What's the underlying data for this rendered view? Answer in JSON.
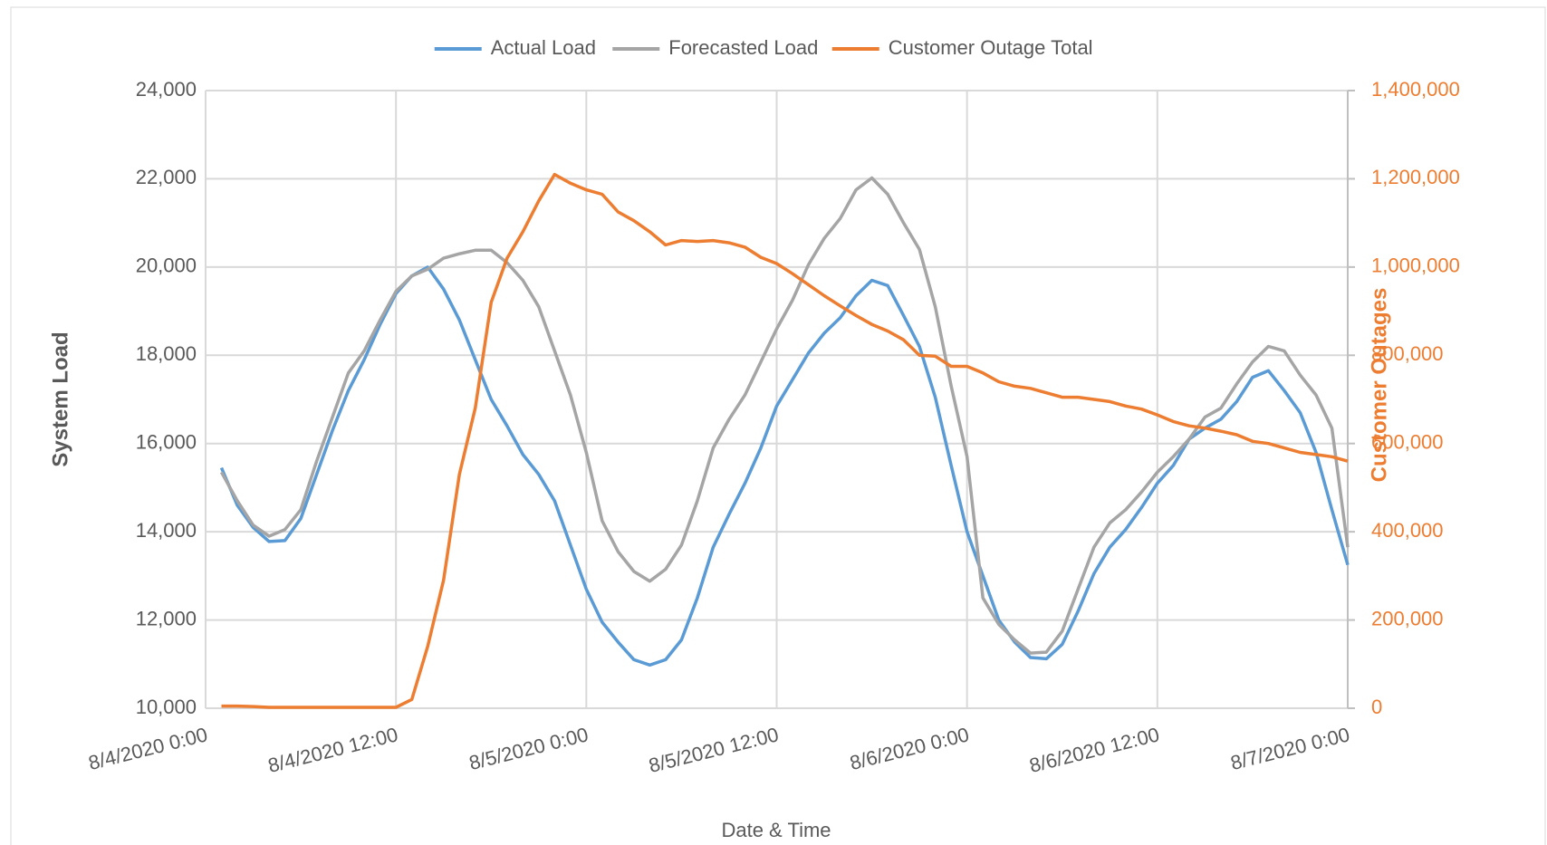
{
  "chart_data": {
    "type": "line",
    "x_label": "Date & Time",
    "y_label": "System Load",
    "y2_label": "Customer Outages",
    "x": [
      "8/4/2020 1:00",
      "8/4/2020 2:00",
      "8/4/2020 3:00",
      "8/4/2020 4:00",
      "8/4/2020 5:00",
      "8/4/2020 6:00",
      "8/4/2020 7:00",
      "8/4/2020 8:00",
      "8/4/2020 9:00",
      "8/4/2020 10:00",
      "8/4/2020 11:00",
      "8/4/2020 12:00",
      "8/4/2020 13:00",
      "8/4/2020 14:00",
      "8/4/2020 15:00",
      "8/4/2020 16:00",
      "8/4/2020 17:00",
      "8/4/2020 18:00",
      "8/4/2020 19:00",
      "8/4/2020 20:00",
      "8/4/2020 21:00",
      "8/4/2020 22:00",
      "8/4/2020 23:00",
      "8/5/2020 0:00",
      "8/5/2020 1:00",
      "8/5/2020 2:00",
      "8/5/2020 3:00",
      "8/5/2020 4:00",
      "8/5/2020 5:00",
      "8/5/2020 6:00",
      "8/5/2020 7:00",
      "8/5/2020 8:00",
      "8/5/2020 9:00",
      "8/5/2020 10:00",
      "8/5/2020 11:00",
      "8/5/2020 12:00",
      "8/5/2020 13:00",
      "8/5/2020 14:00",
      "8/5/2020 15:00",
      "8/5/2020 16:00",
      "8/5/2020 17:00",
      "8/5/2020 18:00",
      "8/5/2020 19:00",
      "8/5/2020 20:00",
      "8/5/2020 21:00",
      "8/5/2020 22:00",
      "8/5/2020 23:00",
      "8/6/2020 0:00",
      "8/6/2020 1:00",
      "8/6/2020 2:00",
      "8/6/2020 3:00",
      "8/6/2020 4:00",
      "8/6/2020 5:00",
      "8/6/2020 6:00",
      "8/6/2020 7:00",
      "8/6/2020 8:00",
      "8/6/2020 9:00",
      "8/6/2020 10:00",
      "8/6/2020 11:00",
      "8/6/2020 12:00",
      "8/6/2020 13:00",
      "8/6/2020 14:00",
      "8/6/2020 15:00",
      "8/6/2020 16:00",
      "8/6/2020 17:00",
      "8/6/2020 18:00",
      "8/6/2020 19:00",
      "8/6/2020 20:00",
      "8/6/2020 21:00",
      "8/6/2020 22:00",
      "8/6/2020 23:00",
      "8/7/2020 0:00"
    ],
    "xlim": [
      "8/4/2020 0:00",
      "8/7/2020 0:00"
    ],
    "xticks": [
      "8/4/2020 0:00",
      "8/4/2020 12:00",
      "8/5/2020 0:00",
      "8/5/2020 12:00",
      "8/6/2020 0:00",
      "8/6/2020 12:00",
      "8/7/2020 0:00"
    ],
    "ylim": [
      10000,
      24000
    ],
    "yticks": [
      {
        "value": 10000,
        "label": "10,000"
      },
      {
        "value": 12000,
        "label": "12,000"
      },
      {
        "value": 14000,
        "label": "14,000"
      },
      {
        "value": 16000,
        "label": "16,000"
      },
      {
        "value": 18000,
        "label": "18,000"
      },
      {
        "value": 20000,
        "label": "20,000"
      },
      {
        "value": 22000,
        "label": "22,000"
      },
      {
        "value": 24000,
        "label": "24,000"
      }
    ],
    "y2lim": [
      0,
      1400000
    ],
    "y2ticks": [
      0,
      {
        "value": 200000,
        "label": "200,000"
      },
      {
        "value": 400000,
        "label": "400,000"
      },
      {
        "value": 600000,
        "label": "600,000"
      },
      {
        "value": 800000,
        "label": "800,000"
      },
      {
        "value": 1000000,
        "label": "1,000,000"
      },
      {
        "value": 1200000,
        "label": "1,200,000"
      },
      {
        "value": 1400000,
        "label": "1,400,000"
      }
    ],
    "grid": true,
    "legend": "top",
    "series": [
      {
        "name": "Actual Load",
        "color": "#5b9bd5",
        "values": [
          15450,
          14600,
          14100,
          13780,
          13800,
          14300,
          15300,
          16300,
          17200,
          17900,
          18700,
          19400,
          19800,
          20000,
          19500,
          18800,
          17900,
          17000,
          16400,
          15750,
          15300,
          14700,
          13700,
          12700,
          11950,
          11500,
          11100,
          10980,
          11100,
          11550,
          12500,
          13650,
          14400,
          15100,
          15900,
          16850,
          17450,
          18050,
          18500,
          18850,
          19350,
          19700,
          19580,
          18900,
          18200,
          17050,
          15500,
          14000,
          13000,
          12000,
          11500,
          11150,
          11120,
          11450,
          12200,
          13050,
          13650,
          14050,
          14550,
          15100,
          15500,
          16100,
          16350,
          16550,
          16950,
          17500,
          17650,
          17200,
          16700,
          15800,
          14500,
          13250
        ]
      },
      {
        "name": "Forecasted Load",
        "color": "#a5a5a5",
        "values": [
          15350,
          14700,
          14150,
          13900,
          14050,
          14500,
          15600,
          16600,
          17600,
          18100,
          18800,
          19450,
          19800,
          19950,
          20200,
          20300,
          20380,
          20380,
          20100,
          19700,
          19100,
          18100,
          17100,
          15800,
          14250,
          13550,
          13100,
          12880,
          13150,
          13700,
          14700,
          15900,
          16550,
          17100,
          17850,
          18600,
          19250,
          20050,
          20650,
          21100,
          21750,
          22020,
          21650,
          21000,
          20400,
          19100,
          17300,
          15700,
          12500,
          11900,
          11550,
          11250,
          11270,
          11750,
          12700,
          13650,
          14200,
          14500,
          14900,
          15350,
          15700,
          16100,
          16600,
          16800,
          17350,
          17850,
          18200,
          18100,
          17550,
          17100,
          16350,
          13650
        ]
      },
      {
        "name": "Customer Outage Total",
        "color": "#ed7d31",
        "axis": "y2",
        "values": [
          5000,
          5000,
          4000,
          2000,
          2000,
          2000,
          2000,
          2000,
          2000,
          2000,
          2000,
          2000,
          20000,
          140000,
          290000,
          530000,
          680000,
          920000,
          1020000,
          1080000,
          1150000,
          1210000,
          1190000,
          1175000,
          1165000,
          1125000,
          1105000,
          1080000,
          1050000,
          1060000,
          1058000,
          1060000,
          1055000,
          1045000,
          1022000,
          1008000,
          985000,
          960000,
          935000,
          912000,
          890000,
          870000,
          855000,
          835000,
          800000,
          798000,
          775000,
          775000,
          760000,
          740000,
          730000,
          725000,
          715000,
          705000,
          705000,
          700000,
          695000,
          685000,
          678000,
          665000,
          650000,
          640000,
          635000,
          628000,
          620000,
          605000,
          600000,
          590000,
          580000,
          575000,
          570000,
          560000
        ]
      }
    ]
  }
}
